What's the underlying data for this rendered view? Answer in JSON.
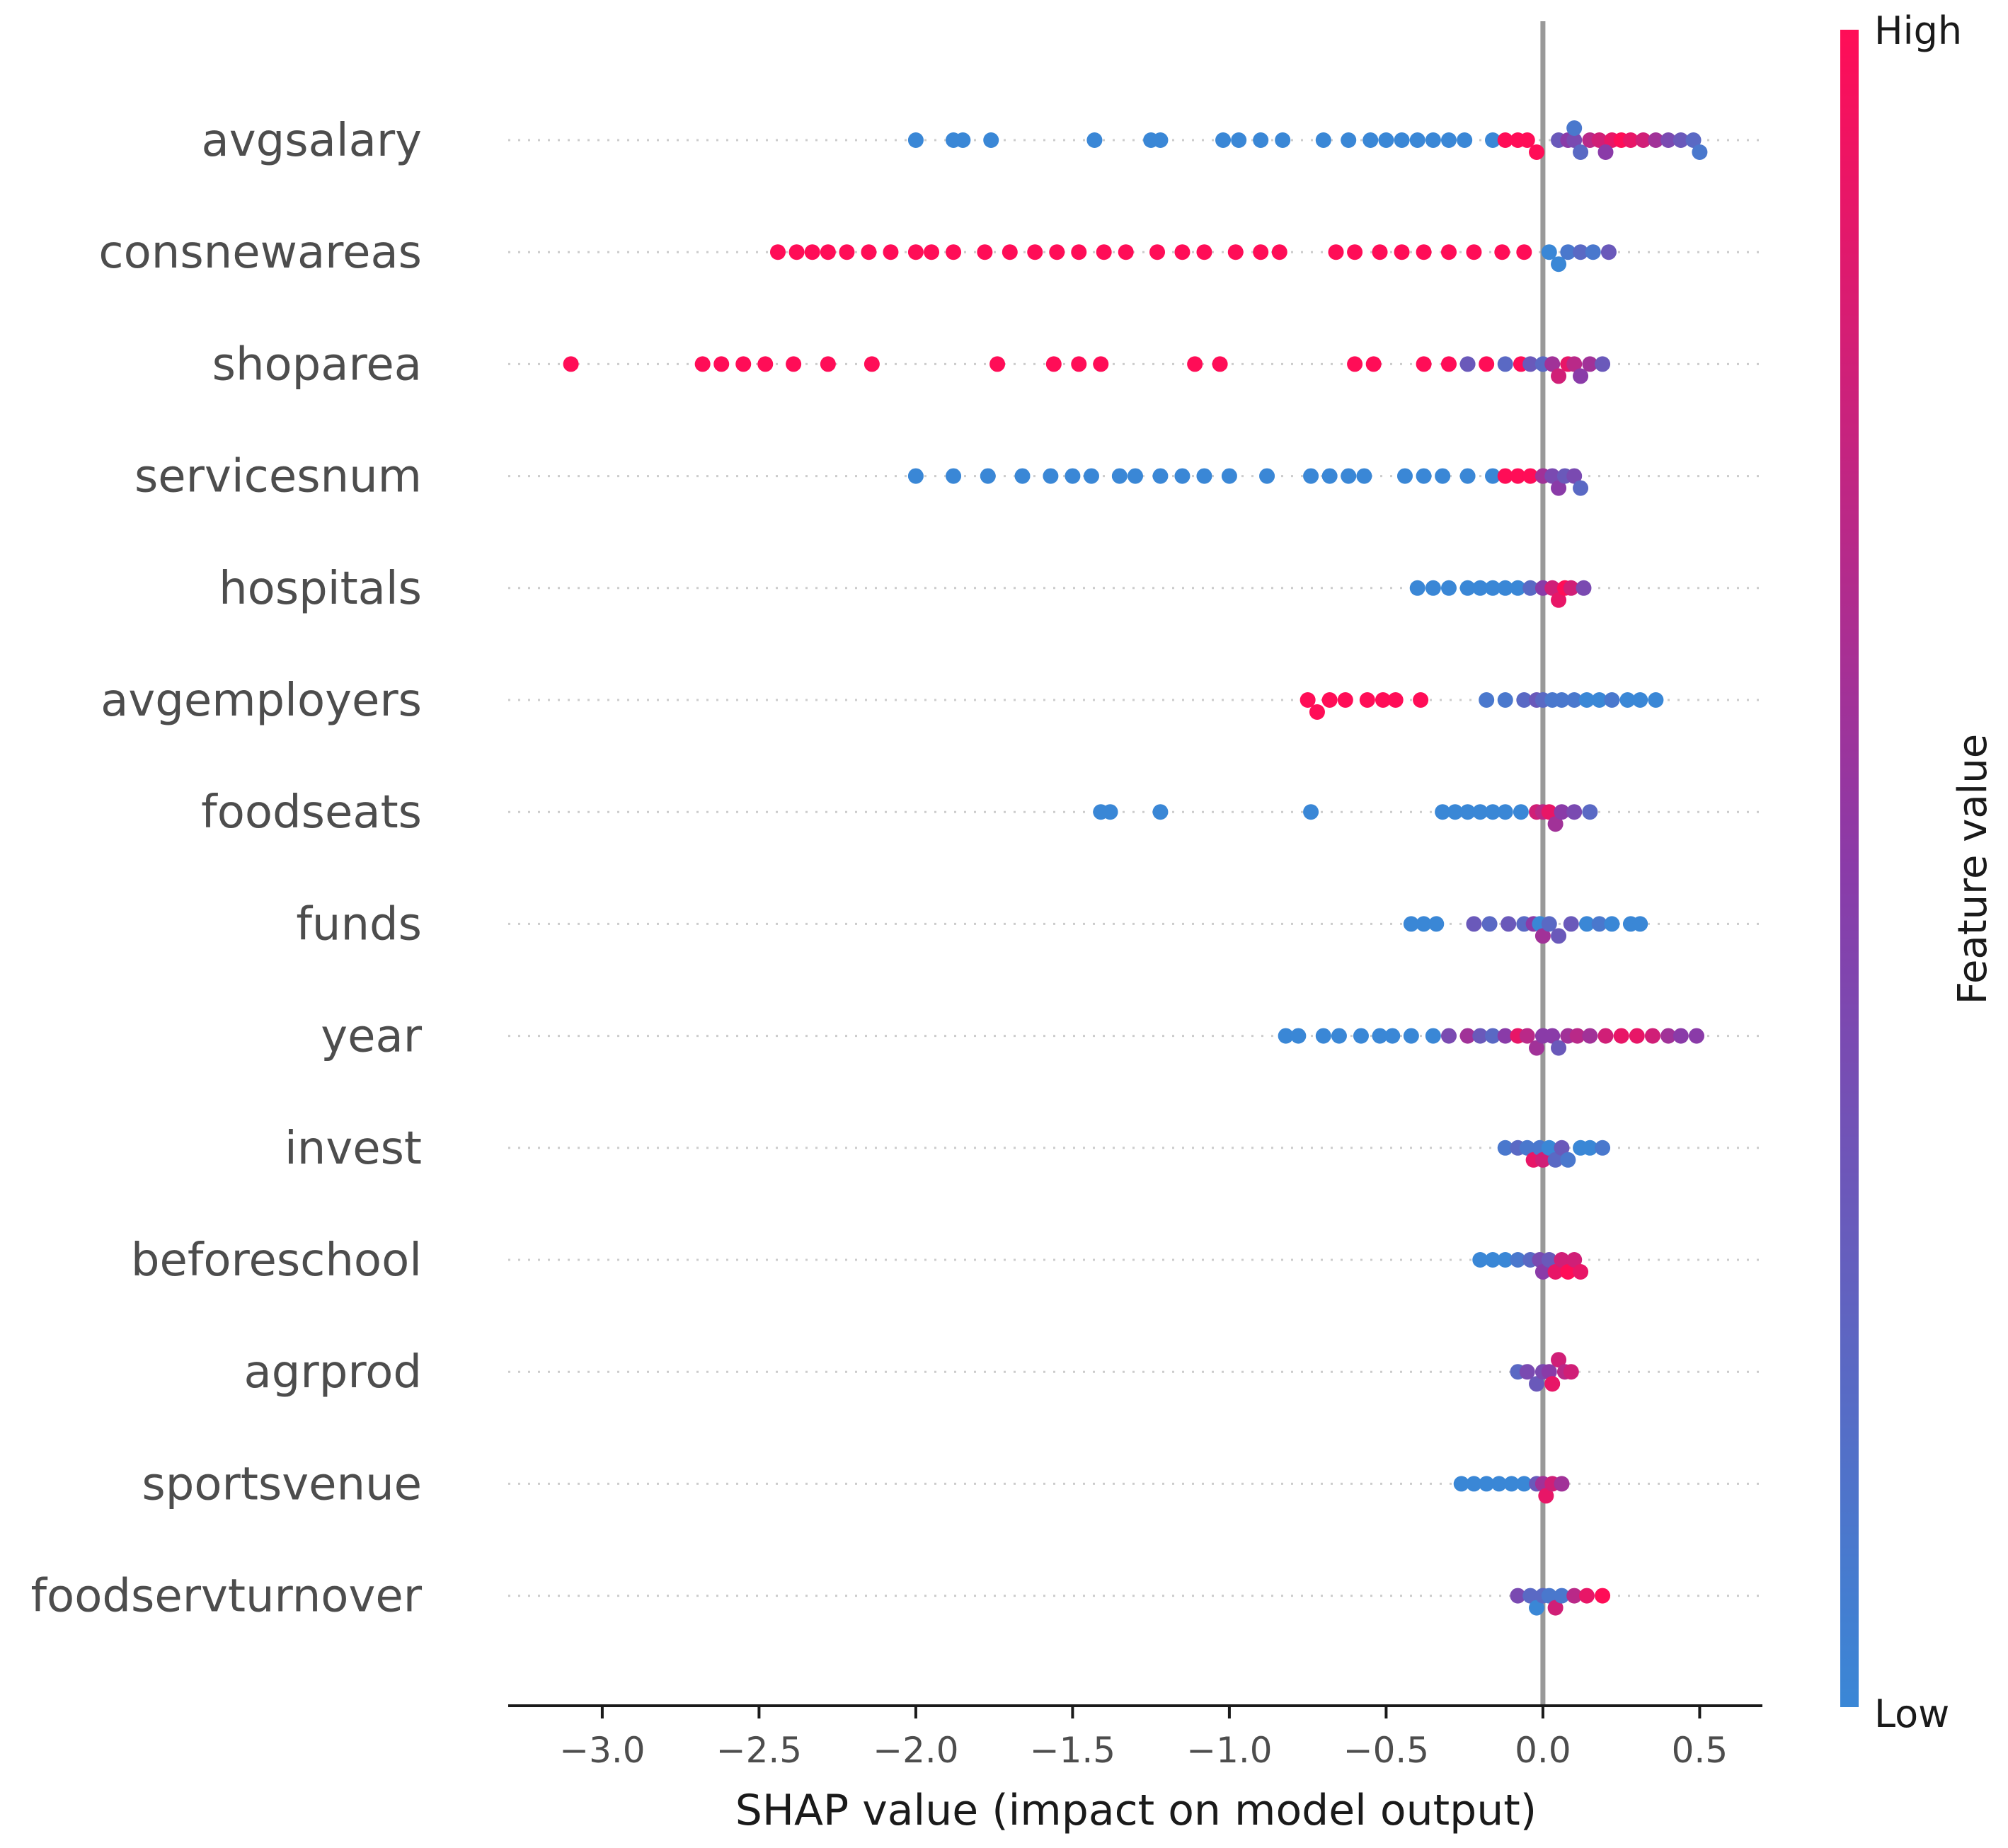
{
  "chart_data": {
    "type": "scatter",
    "subtype": "shap-beeswarm",
    "xlabel": "SHAP value (impact on model output)",
    "xlim": [
      -3.3,
      0.7
    ],
    "xticks": [
      -3.0,
      -2.5,
      -2.0,
      -1.5,
      -1.0,
      -0.5,
      0.0,
      0.5
    ],
    "xtick_labels": [
      "−3.0",
      "−2.5",
      "−2.0",
      "−1.5",
      "−1.0",
      "−0.5",
      "0.0",
      "0.5"
    ],
    "zero_line": 0.0,
    "colorbar": {
      "title": "Feature value",
      "high_label": "High",
      "low_label": "Low",
      "low_color": "#3a87d6",
      "mid_color": "#8a3ba8",
      "high_color": "#ff0d57"
    },
    "features": [
      {
        "name": "avgsalary",
        "points": [
          [
            -2.0,
            0.0
          ],
          [
            -1.88,
            0.0
          ],
          [
            -1.85,
            0.0
          ],
          [
            -1.76,
            0.0
          ],
          [
            -1.43,
            0.0
          ],
          [
            -1.25,
            0.0
          ],
          [
            -1.22,
            0.0
          ],
          [
            -1.02,
            0.0
          ],
          [
            -0.97,
            0.0
          ],
          [
            -0.9,
            0.0
          ],
          [
            -0.83,
            0.0
          ],
          [
            -0.7,
            0.0
          ],
          [
            -0.62,
            0.0
          ],
          [
            -0.55,
            0.0
          ],
          [
            -0.5,
            0.0
          ],
          [
            -0.45,
            0.0
          ],
          [
            -0.4,
            0.0
          ],
          [
            -0.35,
            0.0
          ],
          [
            -0.3,
            0.0
          ],
          [
            -0.25,
            0.0
          ],
          [
            -0.16,
            0.0
          ],
          [
            -0.12,
            1.0
          ],
          [
            -0.08,
            1.0
          ],
          [
            -0.05,
            1.0
          ],
          [
            -0.02,
            1.0
          ],
          [
            0.05,
            0.3
          ],
          [
            0.08,
            0.5
          ],
          [
            0.1,
            0.4
          ],
          [
            0.12,
            0.2
          ],
          [
            0.15,
            0.7
          ],
          [
            0.18,
            0.8
          ],
          [
            0.22,
            0.9
          ],
          [
            0.25,
            1.0
          ],
          [
            0.28,
            0.9
          ],
          [
            0.32,
            0.8
          ],
          [
            0.36,
            0.6
          ],
          [
            0.4,
            0.4
          ],
          [
            0.44,
            0.3
          ],
          [
            0.48,
            0.2
          ],
          [
            0.5,
            0.1
          ],
          [
            0.1,
            0.1
          ],
          [
            0.2,
            0.5
          ]
        ]
      },
      {
        "name": "consnewareas",
        "points": [
          [
            -2.44,
            1.0
          ],
          [
            -2.38,
            1.0
          ],
          [
            -2.33,
            1.0
          ],
          [
            -2.28,
            1.0
          ],
          [
            -2.22,
            1.0
          ],
          [
            -2.15,
            1.0
          ],
          [
            -2.08,
            1.0
          ],
          [
            -2.0,
            1.0
          ],
          [
            -1.95,
            1.0
          ],
          [
            -1.88,
            1.0
          ],
          [
            -1.78,
            1.0
          ],
          [
            -1.7,
            1.0
          ],
          [
            -1.62,
            1.0
          ],
          [
            -1.55,
            1.0
          ],
          [
            -1.48,
            1.0
          ],
          [
            -1.4,
            1.0
          ],
          [
            -1.33,
            1.0
          ],
          [
            -1.23,
            1.0
          ],
          [
            -1.15,
            1.0
          ],
          [
            -1.08,
            1.0
          ],
          [
            -0.98,
            1.0
          ],
          [
            -0.9,
            1.0
          ],
          [
            -0.84,
            1.0
          ],
          [
            -0.66,
            1.0
          ],
          [
            -0.6,
            1.0
          ],
          [
            -0.52,
            1.0
          ],
          [
            -0.45,
            1.0
          ],
          [
            -0.38,
            1.0
          ],
          [
            -0.3,
            1.0
          ],
          [
            -0.22,
            1.0
          ],
          [
            -0.13,
            1.0
          ],
          [
            -0.06,
            1.0
          ],
          [
            0.02,
            0.0
          ],
          [
            0.05,
            0.0
          ],
          [
            0.08,
            0.1
          ],
          [
            0.12,
            0.2
          ],
          [
            0.16,
            0.1
          ],
          [
            0.21,
            0.3
          ]
        ]
      },
      {
        "name": "shoparea",
        "points": [
          [
            -3.1,
            1.0
          ],
          [
            -2.68,
            1.0
          ],
          [
            -2.62,
            1.0
          ],
          [
            -2.55,
            1.0
          ],
          [
            -2.48,
            1.0
          ],
          [
            -2.39,
            1.0
          ],
          [
            -2.28,
            1.0
          ],
          [
            -2.14,
            1.0
          ],
          [
            -1.74,
            1.0
          ],
          [
            -1.56,
            1.0
          ],
          [
            -1.48,
            1.0
          ],
          [
            -1.41,
            1.0
          ],
          [
            -1.11,
            1.0
          ],
          [
            -1.03,
            1.0
          ],
          [
            -0.6,
            1.0
          ],
          [
            -0.54,
            1.0
          ],
          [
            -0.38,
            1.0
          ],
          [
            -0.3,
            1.0
          ],
          [
            -0.24,
            0.3
          ],
          [
            -0.18,
            1.0
          ],
          [
            -0.12,
            0.2
          ],
          [
            -0.07,
            1.0
          ],
          [
            -0.04,
            0.3
          ],
          [
            0.0,
            0.2
          ],
          [
            0.03,
            0.6
          ],
          [
            0.05,
            0.8
          ],
          [
            0.08,
            0.9
          ],
          [
            0.1,
            0.7
          ],
          [
            0.12,
            0.5
          ],
          [
            0.15,
            0.6
          ],
          [
            0.19,
            0.3
          ]
        ]
      },
      {
        "name": "servicesnum",
        "points": [
          [
            -2.0,
            0.0
          ],
          [
            -1.88,
            0.0
          ],
          [
            -1.77,
            0.0
          ],
          [
            -1.66,
            0.0
          ],
          [
            -1.57,
            0.0
          ],
          [
            -1.5,
            0.0
          ],
          [
            -1.44,
            0.0
          ],
          [
            -1.35,
            0.0
          ],
          [
            -1.3,
            0.0
          ],
          [
            -1.22,
            0.0
          ],
          [
            -1.15,
            0.0
          ],
          [
            -1.08,
            0.0
          ],
          [
            -1.0,
            0.0
          ],
          [
            -0.88,
            0.0
          ],
          [
            -0.74,
            0.0
          ],
          [
            -0.68,
            0.0
          ],
          [
            -0.62,
            0.0
          ],
          [
            -0.57,
            0.0
          ],
          [
            -0.44,
            0.0
          ],
          [
            -0.38,
            0.0
          ],
          [
            -0.32,
            0.0
          ],
          [
            -0.24,
            0.0
          ],
          [
            -0.16,
            0.0
          ],
          [
            -0.12,
            1.0
          ],
          [
            -0.08,
            1.0
          ],
          [
            -0.04,
            1.0
          ],
          [
            0.0,
            0.6
          ],
          [
            0.03,
            0.4
          ],
          [
            0.05,
            0.5
          ],
          [
            0.07,
            0.3
          ],
          [
            0.1,
            0.4
          ],
          [
            0.12,
            0.2
          ]
        ]
      },
      {
        "name": "hospitals",
        "points": [
          [
            -0.4,
            0.0
          ],
          [
            -0.35,
            0.0
          ],
          [
            -0.3,
            0.0
          ],
          [
            -0.24,
            0.0
          ],
          [
            -0.2,
            0.0
          ],
          [
            -0.16,
            0.0
          ],
          [
            -0.12,
            0.0
          ],
          [
            -0.08,
            0.0
          ],
          [
            -0.04,
            0.2
          ],
          [
            0.0,
            0.5
          ],
          [
            0.03,
            0.8
          ],
          [
            0.05,
            0.9
          ],
          [
            0.07,
            1.0
          ],
          [
            0.09,
            0.8
          ],
          [
            0.13,
            0.4
          ]
        ]
      },
      {
        "name": "avgemployers",
        "points": [
          [
            -0.75,
            1.0
          ],
          [
            -0.72,
            1.0
          ],
          [
            -0.68,
            1.0
          ],
          [
            -0.63,
            1.0
          ],
          [
            -0.56,
            1.0
          ],
          [
            -0.51,
            1.0
          ],
          [
            -0.47,
            1.0
          ],
          [
            -0.39,
            1.0
          ],
          [
            -0.18,
            0.1
          ],
          [
            -0.12,
            0.1
          ],
          [
            -0.06,
            0.2
          ],
          [
            -0.02,
            0.3
          ],
          [
            0.0,
            0.2
          ],
          [
            0.03,
            0.1
          ],
          [
            0.06,
            0.1
          ],
          [
            0.1,
            0.1
          ],
          [
            0.14,
            0.0
          ],
          [
            0.18,
            0.0
          ],
          [
            0.22,
            0.1
          ],
          [
            0.27,
            0.0
          ],
          [
            0.31,
            0.0
          ],
          [
            0.36,
            0.0
          ]
        ]
      },
      {
        "name": "foodseats",
        "points": [
          [
            -1.41,
            0.0
          ],
          [
            -1.38,
            0.0
          ],
          [
            -1.22,
            0.0
          ],
          [
            -0.74,
            0.0
          ],
          [
            -0.32,
            0.0
          ],
          [
            -0.28,
            0.0
          ],
          [
            -0.24,
            0.0
          ],
          [
            -0.2,
            0.0
          ],
          [
            -0.16,
            0.0
          ],
          [
            -0.12,
            0.0
          ],
          [
            -0.07,
            0.0
          ],
          [
            -0.02,
            0.8
          ],
          [
            0.0,
            0.7
          ],
          [
            0.02,
            0.9
          ],
          [
            0.04,
            0.6
          ],
          [
            0.06,
            0.5
          ],
          [
            0.1,
            0.4
          ],
          [
            0.15,
            0.2
          ]
        ]
      },
      {
        "name": "funds",
        "points": [
          [
            -0.42,
            0.0
          ],
          [
            -0.38,
            0.0
          ],
          [
            -0.34,
            0.0
          ],
          [
            -0.22,
            0.3
          ],
          [
            -0.17,
            0.2
          ],
          [
            -0.11,
            0.3
          ],
          [
            -0.06,
            0.2
          ],
          [
            -0.03,
            0.5
          ],
          [
            -0.01,
            0.0
          ],
          [
            0.0,
            0.6
          ],
          [
            0.02,
            0.2
          ],
          [
            0.05,
            0.3
          ],
          [
            0.09,
            0.3
          ],
          [
            0.14,
            0.0
          ],
          [
            0.18,
            0.1
          ],
          [
            0.22,
            0.0
          ],
          [
            0.28,
            0.0
          ],
          [
            0.31,
            0.0
          ]
        ]
      },
      {
        "name": "year",
        "points": [
          [
            -0.82,
            0.0
          ],
          [
            -0.78,
            0.0
          ],
          [
            -0.7,
            0.0
          ],
          [
            -0.65,
            0.0
          ],
          [
            -0.58,
            0.0
          ],
          [
            -0.52,
            0.0
          ],
          [
            -0.48,
            0.0
          ],
          [
            -0.42,
            0.0
          ],
          [
            -0.35,
            0.0
          ],
          [
            -0.3,
            0.4
          ],
          [
            -0.24,
            0.6
          ],
          [
            -0.2,
            0.3
          ],
          [
            -0.16,
            0.2
          ],
          [
            -0.12,
            0.5
          ],
          [
            -0.08,
            0.9
          ],
          [
            -0.05,
            0.7
          ],
          [
            -0.02,
            0.6
          ],
          [
            0.0,
            0.5
          ],
          [
            0.03,
            0.5
          ],
          [
            0.05,
            0.3
          ],
          [
            0.08,
            0.6
          ],
          [
            0.11,
            0.7
          ],
          [
            0.15,
            0.6
          ],
          [
            0.2,
            0.8
          ],
          [
            0.25,
            0.9
          ],
          [
            0.3,
            0.9
          ],
          [
            0.35,
            0.8
          ],
          [
            0.4,
            0.6
          ],
          [
            0.44,
            0.5
          ],
          [
            0.49,
            0.5
          ]
        ]
      },
      {
        "name": "invest",
        "points": [
          [
            -0.12,
            0.1
          ],
          [
            -0.08,
            0.2
          ],
          [
            -0.05,
            0.1
          ],
          [
            -0.03,
            0.9
          ],
          [
            -0.01,
            0.1
          ],
          [
            0.0,
            0.8
          ],
          [
            0.02,
            0.0
          ],
          [
            0.04,
            0.2
          ],
          [
            0.06,
            0.3
          ],
          [
            0.08,
            0.1
          ],
          [
            0.12,
            0.0
          ],
          [
            0.15,
            0.0
          ],
          [
            0.19,
            0.1
          ]
        ]
      },
      {
        "name": "beforeschool",
        "points": [
          [
            -0.2,
            0.0
          ],
          [
            -0.16,
            0.0
          ],
          [
            -0.12,
            0.0
          ],
          [
            -0.08,
            0.1
          ],
          [
            -0.04,
            0.2
          ],
          [
            -0.01,
            0.4
          ],
          [
            0.0,
            0.5
          ],
          [
            0.02,
            0.3
          ],
          [
            0.04,
            0.9
          ],
          [
            0.06,
            0.8
          ],
          [
            0.08,
            1.0
          ],
          [
            0.1,
            0.8
          ],
          [
            0.12,
            0.9
          ]
        ]
      },
      {
        "name": "agrprod",
        "points": [
          [
            -0.08,
            0.2
          ],
          [
            -0.05,
            0.4
          ],
          [
            -0.02,
            0.3
          ],
          [
            0.0,
            0.4
          ],
          [
            0.02,
            0.5
          ],
          [
            0.03,
            0.9
          ],
          [
            0.05,
            0.8
          ],
          [
            0.07,
            0.7
          ],
          [
            0.09,
            0.8
          ]
        ]
      },
      {
        "name": "sportsvenue",
        "points": [
          [
            -0.26,
            0.0
          ],
          [
            -0.22,
            0.0
          ],
          [
            -0.18,
            0.0
          ],
          [
            -0.14,
            0.0
          ],
          [
            -0.1,
            0.0
          ],
          [
            -0.06,
            0.0
          ],
          [
            -0.02,
            0.3
          ],
          [
            0.0,
            0.6
          ],
          [
            0.01,
            0.9
          ],
          [
            0.03,
            0.8
          ],
          [
            0.06,
            0.6
          ]
        ]
      },
      {
        "name": "foodservturnover",
        "points": [
          [
            -0.08,
            0.4
          ],
          [
            -0.04,
            0.2
          ],
          [
            -0.02,
            0.0
          ],
          [
            0.0,
            0.2
          ],
          [
            0.02,
            0.1
          ],
          [
            0.04,
            0.8
          ],
          [
            0.06,
            0.1
          ],
          [
            0.1,
            0.7
          ],
          [
            0.14,
            0.9
          ],
          [
            0.19,
            1.0
          ]
        ]
      }
    ]
  }
}
